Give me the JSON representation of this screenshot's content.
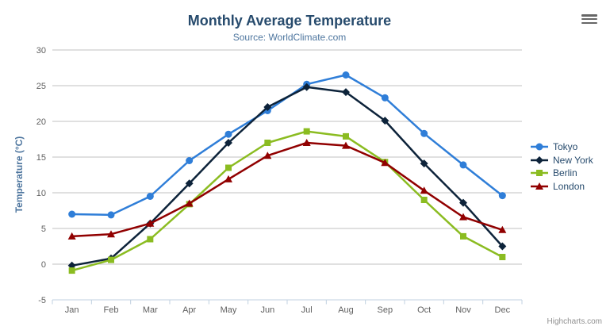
{
  "chart_data": {
    "type": "line",
    "title": "Monthly Average Temperature",
    "subtitle": "Source: WorldClimate.com",
    "xlabel": "",
    "ylabel": "Temperature (°C)",
    "categories": [
      "Jan",
      "Feb",
      "Mar",
      "Apr",
      "May",
      "Jun",
      "Jul",
      "Aug",
      "Sep",
      "Oct",
      "Nov",
      "Dec"
    ],
    "series": [
      {
        "name": "Tokyo",
        "marker": "circle",
        "color": "#2f7ed8",
        "values": [
          7.0,
          6.9,
          9.5,
          14.5,
          18.2,
          21.5,
          25.2,
          26.5,
          23.3,
          18.3,
          13.9,
          9.6
        ]
      },
      {
        "name": "New York",
        "marker": "diamond",
        "color": "#0d233a",
        "values": [
          -0.2,
          0.8,
          5.7,
          11.3,
          17.0,
          22.0,
          24.8,
          24.1,
          20.1,
          14.1,
          8.6,
          2.5
        ]
      },
      {
        "name": "Berlin",
        "marker": "square",
        "color": "#8bbc21",
        "values": [
          -0.9,
          0.6,
          3.5,
          8.4,
          13.5,
          17.0,
          18.6,
          17.9,
          14.3,
          9.0,
          3.9,
          1.0
        ]
      },
      {
        "name": "London",
        "marker": "triangle",
        "color": "#910000",
        "values": [
          3.9,
          4.2,
          5.7,
          8.5,
          11.9,
          15.2,
          17.0,
          16.6,
          14.2,
          10.3,
          6.6,
          4.8
        ]
      }
    ],
    "ylim": [
      -5,
      30
    ],
    "ytick_interval": 5,
    "grid": true,
    "legend_position": "right"
  },
  "credits": {
    "label": "Highcharts.com"
  },
  "icons": {
    "context_menu": "hamburger-menu-icon"
  },
  "colors": {
    "title": "#274b6d",
    "subtitle": "#4d759e",
    "y_axis_title": "#4d759e",
    "axis_labels": "#606060",
    "axis_line": "#c0d0e0",
    "gridline": "#c0c0c0",
    "legend_text": "#274b6d",
    "credits": "#909090",
    "menu_icon": "#666666",
    "background": "#ffffff"
  }
}
